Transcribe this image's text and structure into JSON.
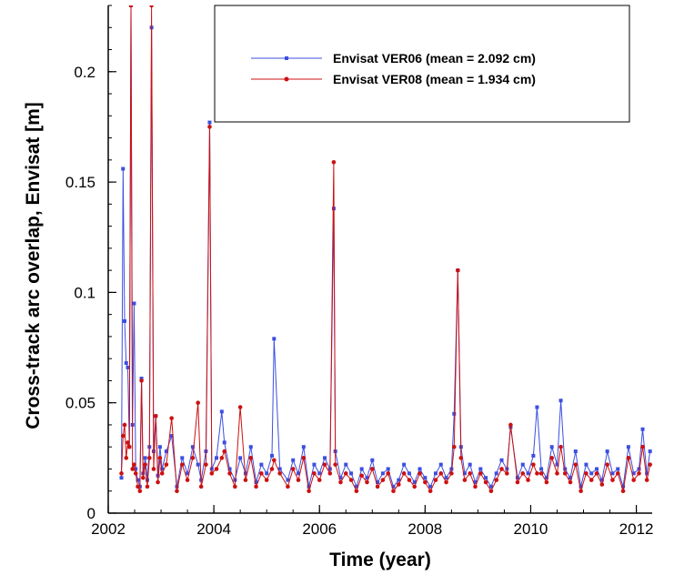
{
  "chart_data": {
    "type": "line",
    "title": "",
    "xlabel": "Time (year)",
    "ylabel": "Cross-track arc overlap, Envisat [m]",
    "xlim": [
      2002,
      2012.3
    ],
    "ylim": [
      0,
      0.23
    ],
    "xticks": [
      2002,
      2004,
      2006,
      2008,
      2010,
      2012
    ],
    "xtick_labels": [
      "2002",
      "2004",
      "2006",
      "2008",
      "2010",
      "2012"
    ],
    "yticks": [
      0,
      0.05,
      0.1,
      0.15,
      0.2
    ],
    "ytick_labels": [
      "0",
      "0.05",
      "0.1",
      "0.15",
      "0.2"
    ],
    "grid": false,
    "legend_position": "top-right",
    "colors": {
      "VER06": "#3b4fe0",
      "VER08": "#cc1111"
    },
    "series": [
      {
        "name": "Envisat VER06 (mean = 2.092 cm)",
        "color": "#3b4fe0",
        "x": [
          2002.25,
          2002.28,
          2002.31,
          2002.34,
          2002.37,
          2002.4,
          2002.43,
          2002.46,
          2002.49,
          2002.52,
          2002.56,
          2002.6,
          2002.63,
          2002.66,
          2002.7,
          2002.74,
          2002.78,
          2002.82,
          2002.86,
          2002.9,
          2002.94,
          2002.98,
          2003.02,
          2003.1,
          2003.2,
          2003.3,
          2003.4,
          2003.5,
          2003.6,
          2003.7,
          2003.76,
          2003.85,
          2003.92,
          2003.96,
          2004.05,
          2004.15,
          2004.2,
          2004.3,
          2004.4,
          2004.5,
          2004.6,
          2004.7,
          2004.8,
          2004.9,
          2005.0,
          2005.1,
          2005.14,
          2005.25,
          2005.4,
          2005.5,
          2005.6,
          2005.7,
          2005.8,
          2005.9,
          2006.0,
          2006.1,
          2006.2,
          2006.27,
          2006.3,
          2006.4,
          2006.5,
          2006.6,
          2006.7,
          2006.8,
          2006.9,
          2007.0,
          2007.1,
          2007.2,
          2007.3,
          2007.4,
          2007.5,
          2007.6,
          2007.7,
          2007.8,
          2007.9,
          2008.0,
          2008.1,
          2008.2,
          2008.3,
          2008.4,
          2008.5,
          2008.55,
          2008.62,
          2008.68,
          2008.75,
          2008.85,
          2008.95,
          2009.05,
          2009.15,
          2009.25,
          2009.35,
          2009.45,
          2009.55,
          2009.62,
          2009.75,
          2009.85,
          2009.95,
          2010.05,
          2010.12,
          2010.2,
          2010.3,
          2010.4,
          2010.5,
          2010.57,
          2010.65,
          2010.75,
          2010.85,
          2010.95,
          2011.05,
          2011.15,
          2011.25,
          2011.35,
          2011.45,
          2011.55,
          2011.65,
          2011.75,
          2011.85,
          2011.95,
          2012.05,
          2012.12,
          2012.2,
          2012.26
        ],
        "y": [
          0.016,
          0.156,
          0.087,
          0.068,
          0.066,
          0.03,
          0.23,
          0.04,
          0.095,
          0.02,
          0.015,
          0.012,
          0.061,
          0.018,
          0.025,
          0.015,
          0.03,
          0.22,
          0.028,
          0.044,
          0.017,
          0.03,
          0.02,
          0.028,
          0.035,
          0.012,
          0.025,
          0.018,
          0.03,
          0.022,
          0.015,
          0.028,
          0.177,
          0.02,
          0.025,
          0.046,
          0.032,
          0.02,
          0.015,
          0.025,
          0.018,
          0.03,
          0.014,
          0.022,
          0.018,
          0.026,
          0.079,
          0.02,
          0.015,
          0.024,
          0.018,
          0.03,
          0.012,
          0.022,
          0.018,
          0.025,
          0.02,
          0.138,
          0.028,
          0.016,
          0.022,
          0.018,
          0.012,
          0.02,
          0.016,
          0.024,
          0.014,
          0.018,
          0.02,
          0.012,
          0.015,
          0.022,
          0.018,
          0.014,
          0.02,
          0.016,
          0.012,
          0.018,
          0.022,
          0.016,
          0.02,
          0.045,
          0.11,
          0.03,
          0.018,
          0.022,
          0.014,
          0.02,
          0.016,
          0.012,
          0.018,
          0.024,
          0.02,
          0.039,
          0.016,
          0.022,
          0.018,
          0.026,
          0.048,
          0.02,
          0.016,
          0.03,
          0.022,
          0.051,
          0.02,
          0.016,
          0.028,
          0.012,
          0.022,
          0.018,
          0.02,
          0.015,
          0.028,
          0.018,
          0.02,
          0.012,
          0.03,
          0.018,
          0.02,
          0.038,
          0.018,
          0.028
        ]
      },
      {
        "name": "Envisat VER08 (mean = 1.934 cm)",
        "color": "#cc1111",
        "x": [
          2002.25,
          2002.28,
          2002.31,
          2002.34,
          2002.37,
          2002.4,
          2002.43,
          2002.46,
          2002.49,
          2002.52,
          2002.56,
          2002.6,
          2002.63,
          2002.66,
          2002.7,
          2002.74,
          2002.78,
          2002.82,
          2002.86,
          2002.9,
          2002.94,
          2002.98,
          2003.02,
          2003.1,
          2003.2,
          2003.3,
          2003.4,
          2003.5,
          2003.6,
          2003.7,
          2003.76,
          2003.85,
          2003.92,
          2003.96,
          2004.05,
          2004.15,
          2004.2,
          2004.3,
          2004.4,
          2004.5,
          2004.6,
          2004.7,
          2004.8,
          2004.9,
          2005.0,
          2005.1,
          2005.14,
          2005.25,
          2005.4,
          2005.5,
          2005.6,
          2005.7,
          2005.8,
          2005.9,
          2006.0,
          2006.1,
          2006.2,
          2006.27,
          2006.3,
          2006.4,
          2006.5,
          2006.6,
          2006.7,
          2006.8,
          2006.9,
          2007.0,
          2007.1,
          2007.2,
          2007.3,
          2007.4,
          2007.5,
          2007.6,
          2007.7,
          2007.8,
          2007.9,
          2008.0,
          2008.1,
          2008.2,
          2008.3,
          2008.4,
          2008.5,
          2008.55,
          2008.62,
          2008.68,
          2008.75,
          2008.85,
          2008.95,
          2009.05,
          2009.15,
          2009.25,
          2009.35,
          2009.45,
          2009.55,
          2009.62,
          2009.75,
          2009.85,
          2009.95,
          2010.05,
          2010.12,
          2010.2,
          2010.3,
          2010.4,
          2010.5,
          2010.57,
          2010.65,
          2010.75,
          2010.85,
          2010.95,
          2011.05,
          2011.15,
          2011.25,
          2011.35,
          2011.45,
          2011.55,
          2011.65,
          2011.75,
          2011.85,
          2011.95,
          2012.05,
          2012.12,
          2012.2,
          2012.26
        ],
        "y": [
          0.018,
          0.035,
          0.04,
          0.025,
          0.032,
          0.03,
          0.23,
          0.02,
          0.022,
          0.018,
          0.012,
          0.01,
          0.06,
          0.016,
          0.022,
          0.012,
          0.025,
          0.23,
          0.02,
          0.044,
          0.014,
          0.025,
          0.018,
          0.022,
          0.043,
          0.01,
          0.022,
          0.015,
          0.025,
          0.05,
          0.012,
          0.022,
          0.175,
          0.018,
          0.02,
          0.025,
          0.028,
          0.018,
          0.012,
          0.048,
          0.015,
          0.025,
          0.012,
          0.018,
          0.015,
          0.02,
          0.024,
          0.018,
          0.012,
          0.02,
          0.015,
          0.025,
          0.01,
          0.018,
          0.015,
          0.022,
          0.018,
          0.159,
          0.022,
          0.014,
          0.018,
          0.015,
          0.01,
          0.017,
          0.014,
          0.02,
          0.012,
          0.015,
          0.018,
          0.01,
          0.013,
          0.018,
          0.015,
          0.012,
          0.018,
          0.014,
          0.01,
          0.015,
          0.018,
          0.014,
          0.018,
          0.03,
          0.11,
          0.025,
          0.015,
          0.018,
          0.012,
          0.018,
          0.014,
          0.01,
          0.015,
          0.02,
          0.018,
          0.04,
          0.014,
          0.018,
          0.015,
          0.022,
          0.018,
          0.018,
          0.014,
          0.025,
          0.018,
          0.03,
          0.018,
          0.014,
          0.022,
          0.01,
          0.018,
          0.015,
          0.018,
          0.013,
          0.022,
          0.015,
          0.018,
          0.01,
          0.025,
          0.015,
          0.018,
          0.03,
          0.015,
          0.022
        ]
      }
    ]
  }
}
